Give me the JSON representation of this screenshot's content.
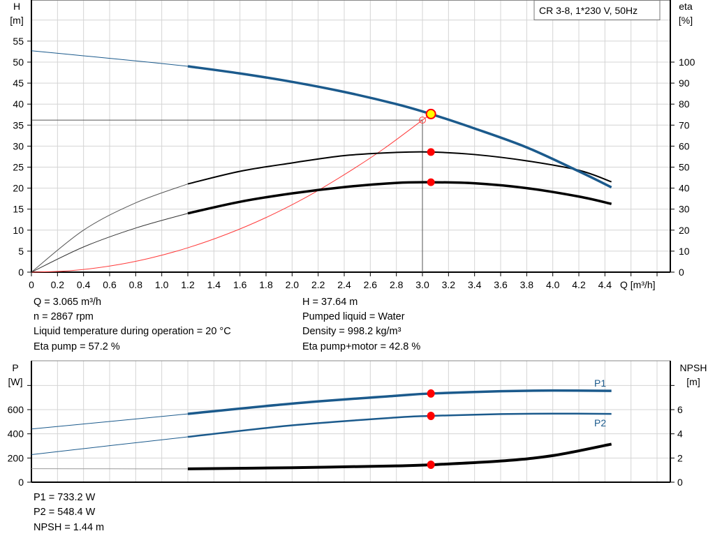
{
  "legend_box": "CR 3-8, 1*230 V, 50Hz",
  "colors": {
    "head": "#1b5a8c",
    "efficiency": "#000000",
    "system": "#ff3b3b",
    "power": "#1b5a8c",
    "npsh": "#000000",
    "point": "#ff0000",
    "duty_point": "#ffff00",
    "grid": "#d4d4d4"
  },
  "top_info": {
    "q": "Q = 3.065 m³/h",
    "n": "n = 2867 rpm",
    "temp": "Liquid temperature during operation = 20 °C",
    "eta_pump": "Eta pump = 57.2 %",
    "h": "H = 37.64 m",
    "liquid": "Pumped liquid = Water",
    "density": "Density = 998.2 kg/m³",
    "eta_total": "Eta pump+motor = 42.8 %"
  },
  "bottom_info": {
    "p1": "P1 = 733.2 W",
    "p2": "P2 = 548.4 W",
    "npsh": "NPSH = 1.44 m"
  },
  "chart_data": [
    {
      "type": "line",
      "xlabel": "Q [m³/h]",
      "ylabel_left": {
        "name": "H",
        "unit": "[m]"
      },
      "ylabel_right": {
        "name": "eta",
        "unit": "[%]"
      },
      "xlim": [
        0,
        4.8
      ],
      "ylim_left": [
        0,
        65
      ],
      "ylim_right": [
        0,
        130
      ],
      "grid": true,
      "x_ticks": [
        "0",
        "0.2",
        "0.4",
        "0.6",
        "0.8",
        "1.0",
        "1.2",
        "1.4",
        "1.6",
        "1.8",
        "2.0",
        "2.2",
        "2.4",
        "2.6",
        "2.8",
        "3.0",
        "3.2",
        "3.4",
        "3.6",
        "3.8",
        "4.0",
        "4.2",
        "4.4"
      ],
      "y_ticks_left": [
        "0",
        "5",
        "10",
        "15",
        "20",
        "25",
        "30",
        "35",
        "40",
        "45",
        "50",
        "55"
      ],
      "y_ticks_right": [
        "0",
        "10",
        "20",
        "30",
        "40",
        "50",
        "60",
        "70",
        "80",
        "90",
        "100"
      ],
      "series": [
        {
          "key": "head",
          "axis": "left",
          "x": [
            0,
            0.4,
            0.8,
            1.2,
            1.6,
            2.0,
            2.4,
            2.8,
            3.065,
            3.4,
            3.8,
            4.2,
            4.45
          ],
          "y": [
            52.7,
            51.5,
            50.3,
            49.0,
            47.3,
            45.3,
            42.9,
            40.0,
            37.64,
            34.2,
            29.7,
            24.0,
            20.2
          ],
          "thin_until": 1.2
        },
        {
          "key": "eta_pump",
          "axis": "right",
          "x": [
            0,
            0.4,
            0.8,
            1.2,
            1.6,
            2.0,
            2.4,
            2.8,
            3.065,
            3.4,
            3.8,
            4.2,
            4.45
          ],
          "y": [
            0,
            20,
            33,
            42,
            48,
            52,
            55.5,
            57,
            57.2,
            56,
            53,
            48.5,
            43
          ],
          "thin_until": 1.2
        },
        {
          "key": "eta_total",
          "axis": "right",
          "x": [
            0,
            0.4,
            0.8,
            1.2,
            1.6,
            2.0,
            2.4,
            2.8,
            3.065,
            3.4,
            3.8,
            4.2,
            4.45
          ],
          "y": [
            0,
            12,
            21,
            28,
            33.5,
            37.5,
            40.5,
            42.5,
            42.8,
            42.3,
            40,
            36,
            32.5
          ],
          "thin_until": 1.2
        },
        {
          "key": "system",
          "axis": "left",
          "x": [
            0,
            0.3,
            0.6,
            0.9,
            1.2,
            1.5,
            1.8,
            2.1,
            2.4,
            2.7,
            3.0
          ],
          "y": [
            0,
            0.36,
            1.45,
            3.26,
            5.8,
            9.05,
            13.0,
            17.7,
            23.2,
            29.3,
            36.2
          ]
        }
      ],
      "duty_point": {
        "q": 3.065,
        "h": 37.64,
        "eta_pump": 57.2,
        "eta_total": 42.8
      },
      "crosshair": {
        "q": 3.0,
        "h": 36.2
      }
    },
    {
      "type": "line",
      "ylabel_left": {
        "name": "P",
        "unit": "[W]"
      },
      "ylabel_right": {
        "name": "NPSH",
        "unit": "[m]"
      },
      "xlim": [
        0,
        4.8
      ],
      "ylim_left": [
        0,
        1000
      ],
      "ylim_right": [
        0,
        10
      ],
      "grid": true,
      "y_ticks_left": [
        "0",
        "200",
        "400",
        "600"
      ],
      "y_ticks_right": [
        "0",
        "2",
        "4",
        "6"
      ],
      "series": [
        {
          "key": "p1",
          "name": "P1",
          "axis": "left",
          "x": [
            0,
            0.6,
            1.2,
            2.0,
            2.8,
            3.065,
            3.6,
            4.0,
            4.45
          ],
          "y": [
            440,
            502,
            565,
            650,
            715,
            733.2,
            752,
            758,
            755
          ],
          "thin_until": 1.2
        },
        {
          "key": "p2",
          "name": "P2",
          "axis": "left",
          "x": [
            0,
            0.6,
            1.2,
            2.0,
            2.8,
            3.065,
            3.6,
            4.0,
            4.45
          ],
          "y": [
            228,
            302,
            375,
            470,
            535,
            548.4,
            563,
            567,
            565
          ],
          "thin_until": 1.2
        },
        {
          "key": "npsh",
          "axis": "right",
          "x": [
            0,
            0.6,
            1.2,
            2.0,
            2.8,
            3.065,
            3.6,
            4.0,
            4.45
          ],
          "y": [
            1.12,
            1.11,
            1.1,
            1.2,
            1.35,
            1.44,
            1.75,
            2.2,
            3.15
          ],
          "thin_until": 1.2
        }
      ],
      "duty_point": {
        "q": 3.065,
        "p1": 733.2,
        "p2": 548.4,
        "npsh": 1.44
      }
    }
  ]
}
